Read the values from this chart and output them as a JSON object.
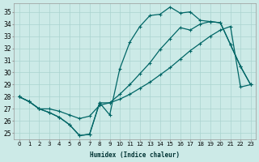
{
  "xlabel": "Humidex (Indice chaleur)",
  "bg_color": "#cceae7",
  "grid_color": "#aad4d0",
  "line_color": "#006666",
  "xlim": [
    -0.5,
    23.5
  ],
  "ylim": [
    24.5,
    35.7
  ],
  "yticks": [
    25,
    26,
    27,
    28,
    29,
    30,
    31,
    32,
    33,
    34,
    35
  ],
  "xticks": [
    0,
    1,
    2,
    3,
    4,
    5,
    6,
    7,
    8,
    9,
    10,
    11,
    12,
    13,
    14,
    15,
    16,
    17,
    18,
    19,
    20,
    21,
    22,
    23
  ],
  "series1_y": [
    28.0,
    27.6,
    27.0,
    26.7,
    26.3,
    25.7,
    24.8,
    24.9,
    27.5,
    26.5,
    30.3,
    32.5,
    33.8,
    34.7,
    34.8,
    35.4,
    34.9,
    35.0,
    34.3,
    34.2,
    34.1,
    32.3,
    30.5,
    29.0
  ],
  "series2_y": [
    28.0,
    27.6,
    27.0,
    26.7,
    26.3,
    25.7,
    24.8,
    24.9,
    27.5,
    27.5,
    28.2,
    29.0,
    29.9,
    30.8,
    31.9,
    32.8,
    33.7,
    33.5,
    34.0,
    34.2,
    34.1,
    32.3,
    30.5,
    29.0
  ],
  "series3_y": [
    28.0,
    27.6,
    27.0,
    27.0,
    26.8,
    26.5,
    26.2,
    26.4,
    27.3,
    27.5,
    27.8,
    28.2,
    28.7,
    29.2,
    29.8,
    30.4,
    31.1,
    31.8,
    32.4,
    33.0,
    33.5,
    33.8,
    28.8,
    29.0
  ]
}
